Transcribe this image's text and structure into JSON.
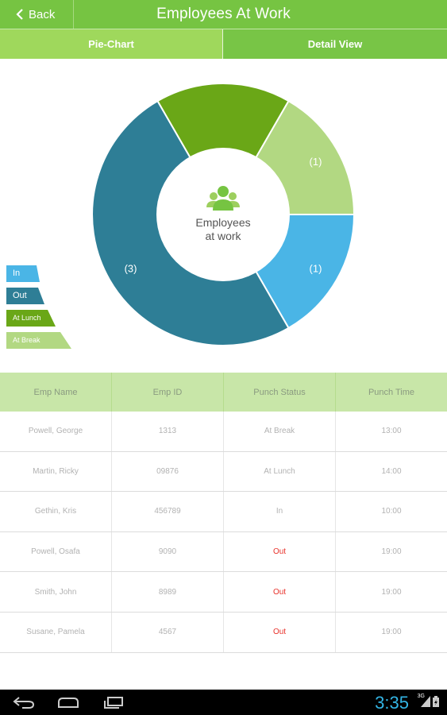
{
  "header": {
    "back_label": "Back",
    "title": "Employees At Work"
  },
  "tabs": [
    {
      "label": "Pie-Chart"
    },
    {
      "label": "Detail View"
    }
  ],
  "chart_data": {
    "type": "pie",
    "center_label_line1": "Employees",
    "center_label_line2": "at work",
    "slices": [
      {
        "name": "In",
        "value": 1,
        "label": "(1)",
        "color": "#4ab5e6"
      },
      {
        "name": "Out",
        "value": 3,
        "label": "(3)",
        "color": "#2e7e96"
      },
      {
        "name": "At Lunch",
        "value": 1,
        "label": "(1)",
        "color": "#6aa717"
      },
      {
        "name": "At Break",
        "value": 1,
        "label": "(1)",
        "color": "#b2d882"
      }
    ],
    "legend_placement": "left"
  },
  "legend": [
    {
      "label": "In",
      "color": "#4ab5e6"
    },
    {
      "label": "Out",
      "color": "#2e7e96"
    },
    {
      "label": "At Lunch",
      "color": "#6aa717"
    },
    {
      "label": "At Break",
      "color": "#b2d882"
    }
  ],
  "table": {
    "columns": [
      "Emp Name",
      "Emp ID",
      "Punch Status",
      "Punch Time"
    ],
    "rows": [
      {
        "name": "Powell, George",
        "id": "1313",
        "status": "At Break",
        "time": "13:00"
      },
      {
        "name": "Martin, Ricky",
        "id": "09876",
        "status": "At Lunch",
        "time": "14:00"
      },
      {
        "name": "Gethin, Kris",
        "id": "456789",
        "status": "In",
        "time": "10:00"
      },
      {
        "name": "Powell, Osafa",
        "id": "9090",
        "status": "Out",
        "time": "19:00"
      },
      {
        "name": "Smith, John",
        "id": "8989",
        "status": "Out",
        "time": "19:00"
      },
      {
        "name": "Susane, Pamela",
        "id": "4567",
        "status": "Out",
        "time": "19:00"
      }
    ]
  },
  "status_bar": {
    "time": "3:35",
    "network": "3G"
  },
  "colors": {
    "accent": "#76c442",
    "out_text": "#e8312a"
  }
}
